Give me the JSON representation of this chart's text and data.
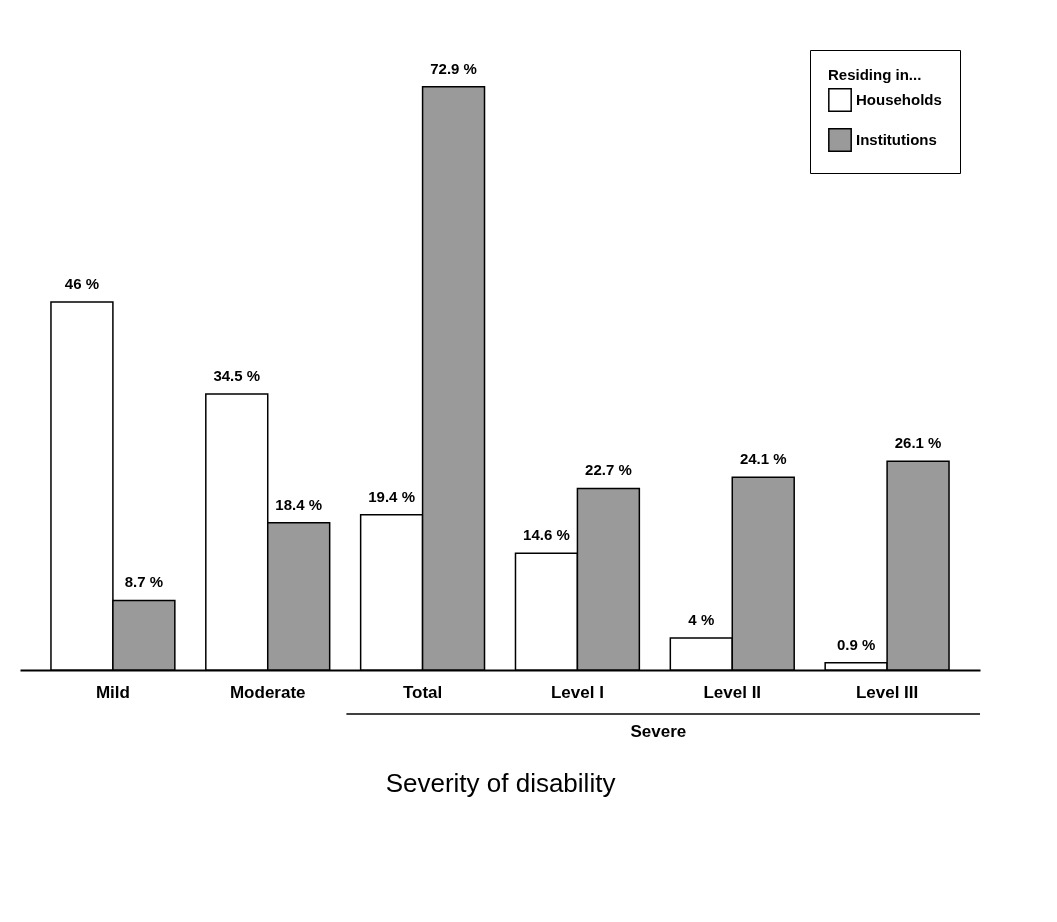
{
  "chart_data": {
    "type": "bar",
    "xlabel": "Severity of disability",
    "legend_title": "Residing in...",
    "legend": "top right",
    "categories": [
      "Mild",
      "Moderate",
      "Total",
      "Level I",
      "Level II",
      "Level III"
    ],
    "series": [
      {
        "name": "Households",
        "color": "#ffffff",
        "values": [
          46,
          34.5,
          19.4,
          14.6,
          4,
          0.9
        ],
        "value_labels": [
          "46 %",
          "34.5 %",
          "19.4 %",
          "14.6 %",
          "4 %",
          "0.9 %"
        ]
      },
      {
        "name": "Institutions",
        "color": "#9a9a9a",
        "values": [
          8.7,
          18.4,
          72.9,
          22.7,
          24.1,
          26.1
        ],
        "value_labels": [
          "8.7 %",
          "18.4 %",
          "72.9 %",
          "22.7 %",
          "24.1 %",
          "26.1 %"
        ]
      }
    ],
    "annotations": [
      "Severe"
    ]
  }
}
